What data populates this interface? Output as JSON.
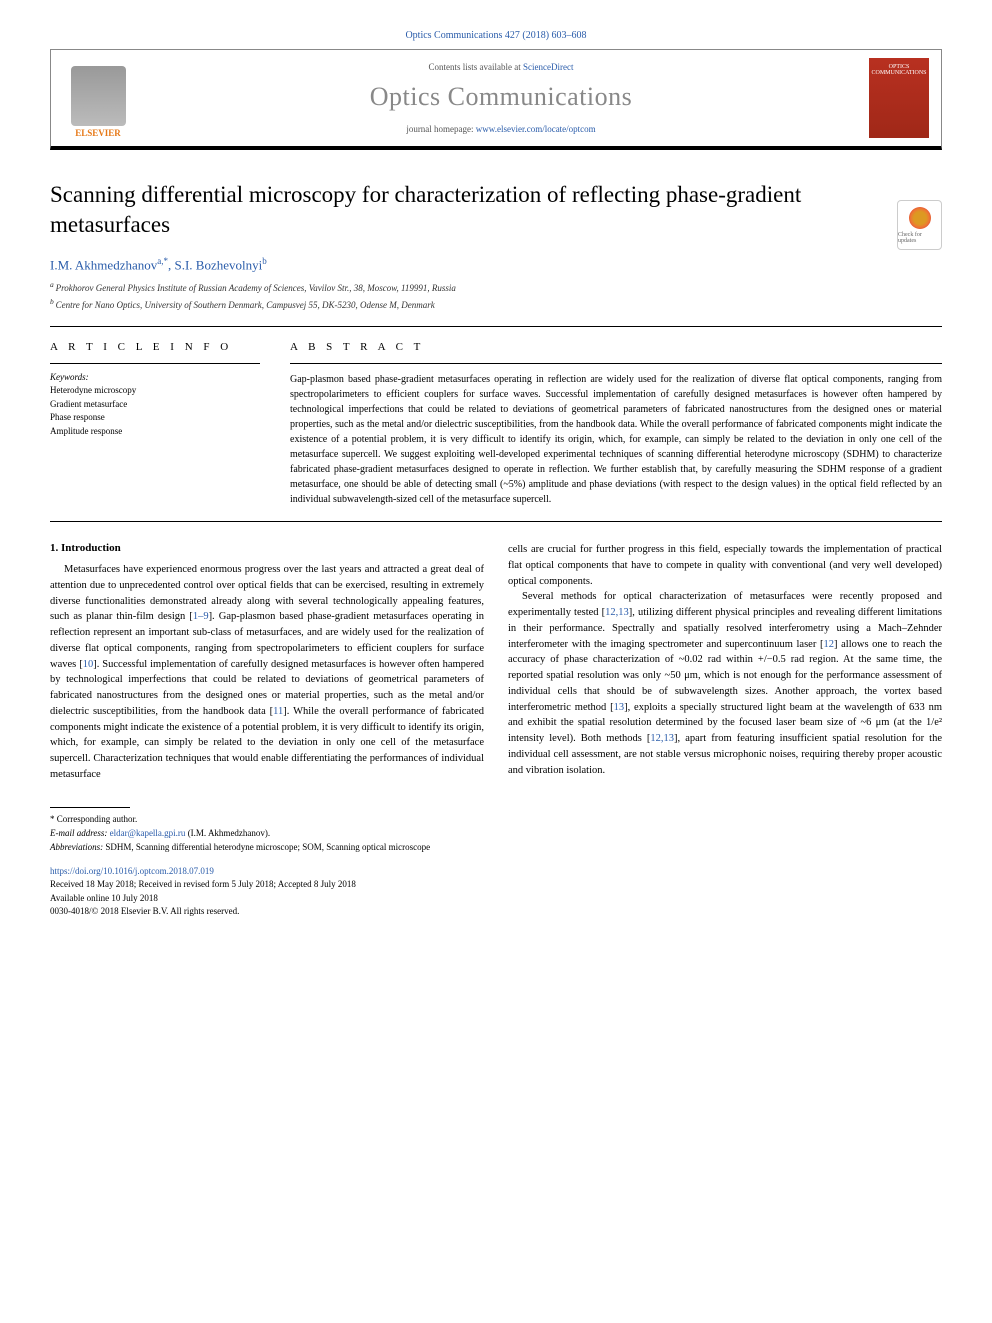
{
  "header": {
    "citation": "Optics Communications 427 (2018) 603–608",
    "contents_prefix": "Contents lists available at ",
    "contents_link": "ScienceDirect",
    "journal_name": "Optics Communications",
    "homepage_prefix": "journal homepage: ",
    "homepage_url": "www.elsevier.com/locate/optcom",
    "publisher_logo_text": "ELSEVIER",
    "cover_text": "OPTICS COMMUNICATIONS",
    "check_badge": "Check for updates"
  },
  "article": {
    "title": "Scanning differential microscopy for characterization of reflecting phase-gradient metasurfaces",
    "authors": [
      {
        "name": "I.M. Akhmedzhanov",
        "affil": "a",
        "corr": "*"
      },
      {
        "name": "S.I. Bozhevolnyi",
        "affil": "b",
        "corr": ""
      }
    ],
    "authors_line_1": "I.M. Akhmedzhanov",
    "authors_sup_1": "a,*",
    "authors_line_2": ", S.I. Bozhevolnyi",
    "authors_sup_2": "b",
    "affiliations": [
      "Prokhorov General Physics Institute of Russian Academy of Sciences, Vavilov Str., 38, Moscow, 119991, Russia",
      "Centre for Nano Optics, University of Southern Denmark, Campusvej 55, DK-5230, Odense M, Denmark"
    ],
    "affil_a_label": "a ",
    "affil_b_label": "b "
  },
  "info": {
    "heading": "A R T I C L E   I N F O",
    "keywords_label": "Keywords:",
    "keywords": [
      "Heterodyne microscopy",
      "Gradient metasurface",
      "Phase response",
      "Amplitude response"
    ]
  },
  "abstract": {
    "heading": "A B S T R A C T",
    "text": "Gap-plasmon based phase-gradient metasurfaces operating in reflection are widely used for the realization of diverse flat optical components, ranging from spectropolarimeters to efficient couplers for surface waves. Successful implementation of carefully designed metasurfaces is however often hampered by technological imperfections that could be related to deviations of geometrical parameters of fabricated nanostructures from the designed ones or material properties, such as the metal and/or dielectric susceptibilities, from the handbook data. While the overall performance of fabricated components might indicate the existence of a potential problem, it is very difficult to identify its origin, which, for example, can simply be related to the deviation in only one cell of the metasurface supercell. We suggest exploiting well-developed experimental techniques of scanning differential heterodyne microscopy (SDHM) to characterize fabricated phase-gradient metasurfaces designed to operate in reflection. We further establish that, by carefully measuring the SDHM response of a gradient metasurface, one should be able of detecting small (~5%) amplitude and phase deviations (with respect to the design values) in the optical field reflected by an individual subwavelength-sized cell of the metasurface supercell."
  },
  "body": {
    "section_number": "1.",
    "section_title": "Introduction",
    "col1_p1_a": "Metasurfaces have experienced enormous progress over the last years and attracted a great deal of attention due to unprecedented control over optical fields that can be exercised, resulting in extremely diverse functionalities demonstrated already along with several technologically appealing features, such as planar thin-film design [",
    "ref_1_9": "1–9",
    "col1_p1_b": "]. Gap-plasmon based phase-gradient metasurfaces operating in reflection represent an important sub-class of metasurfaces, and are widely used for the realization of diverse flat optical components, ranging from spectropolarimeters to efficient couplers for surface waves [",
    "ref_10": "10",
    "col1_p1_c": "]. Successful implementation of carefully designed metasurfaces is however often hampered by technological imperfections that could be related to deviations of geometrical parameters of fabricated nanostructures from the designed ones or material properties, such as the metal and/or dielectric susceptibilities, from the handbook data [",
    "ref_11": "11",
    "col1_p1_d": "]. While the overall performance of fabricated components might indicate the existence of a potential problem, it is very difficult to identify its origin, which, for example, can simply be related to the deviation in only one cell of the metasurface supercell. Characterization techniques that would enable differentiating the performances of individual metasurface",
    "col2_p1": "cells are crucial for further progress in this field, especially towards the implementation of practical flat optical components that have to compete in quality with conventional (and very well developed) optical components.",
    "col2_p2_a": "Several methods for optical characterization of metasurfaces were recently proposed and experimentally tested [",
    "ref_12_13a": "12,13",
    "col2_p2_b": "], utilizing different physical principles and revealing different limitations in their performance. Spectrally and spatially resolved interferometry using a Mach–Zehnder interferometer with the imaging spectrometer and supercontinuum laser [",
    "ref_12": "12",
    "col2_p2_c": "] allows one to reach the accuracy of phase characterization of ~0.02 rad within +/−0.5 rad region. At the same time, the reported spatial resolution was only ~50 μm, which is not enough for the performance assessment of individual cells that should be of subwavelength sizes. Another approach, the vortex based interferometric method [",
    "ref_13": "13",
    "col2_p2_d": "], exploits a specially structured light beam at the wavelength of 633 nm and exhibit the spatial resolution determined by the focused laser beam size of ~6 μm (at the 1/e² intensity level). Both methods [",
    "ref_12_13b": "12,13",
    "col2_p2_e": "], apart from featuring insufficient spatial resolution for the individual cell assessment, are not stable versus microphonic noises, requiring thereby proper acoustic and vibration isolation."
  },
  "footnotes": {
    "corr_marker": "*",
    "corr_text": "Corresponding author.",
    "email_label": "E-mail address: ",
    "email": "eldar@kapella.gpi.ru",
    "email_name": " (I.M. Akhmedzhanov).",
    "abbrev_label": "Abbreviations: ",
    "abbrev_text": "SDHM, Scanning differential heterodyne microscope; SOM, Scanning optical microscope"
  },
  "doi": {
    "url": "https://doi.org/10.1016/j.optcom.2018.07.019",
    "history": "Received 18 May 2018; Received in revised form 5 July 2018; Accepted 8 July 2018",
    "available": "Available online 10 July 2018",
    "copyright": "0030-4018/© 2018 Elsevier B.V. All rights reserved."
  },
  "colors": {
    "link": "#2a5caa",
    "publisher_orange": "#e67817",
    "cover_red": "#b83020"
  }
}
